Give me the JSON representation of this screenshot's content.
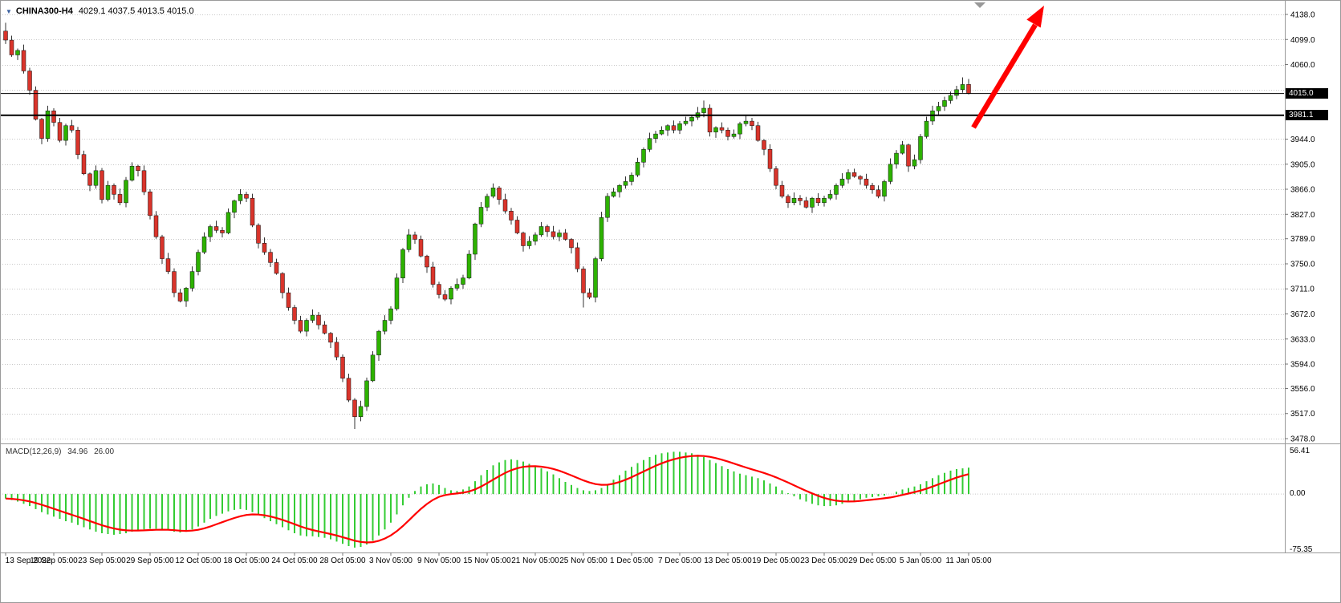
{
  "header": {
    "title": "CHINA300-H4",
    "ohlc": "4029.1 4037.5 4013.5 4015.0",
    "symbol_marker": "▼"
  },
  "price_axis": {
    "labels": [
      "4138.0",
      "4099.0",
      "4060.0",
      "3944.0",
      "3905.0",
      "3866.0",
      "3827.0",
      "3789.0",
      "3750.0",
      "3711.0",
      "3672.0",
      "3633.0",
      "3594.0",
      "3556.0",
      "3517.0",
      "3478.0"
    ],
    "current_price_badge": "4015.0",
    "line_price_badge": "3981.1"
  },
  "current_price_line": {
    "value": 4015.0,
    "color": "#000000"
  },
  "hline": {
    "value": 3981.1,
    "color": "#000000"
  },
  "time_axis": {
    "labels": [
      "13 Sep 2022",
      "19 Sep 05:00",
      "23 Sep 05:00",
      "29 Sep 05:00",
      "12 Oct 05:00",
      "18 Oct 05:00",
      "24 Oct 05:00",
      "28 Oct 05:00",
      "3 Nov 05:00",
      "9 Nov 05:00",
      "15 Nov 05:00",
      "21 Nov 05:00",
      "25 Nov 05:00",
      "1 Dec 05:00",
      "7 Dec 05:00",
      "13 Dec 05:00",
      "19 Dec 05:00",
      "23 Dec 05:00",
      "29 Dec 05:00",
      "5 Jan 05:00",
      "11 Jan 05:00"
    ]
  },
  "macd_panel": {
    "label": "MACD(12,26,9)",
    "value_main": "34.96",
    "value_signal": "26.00",
    "scale": {
      "max": "56.41",
      "zero": "0.00",
      "min": "-75.35"
    }
  },
  "colors": {
    "bull_candle": "#2DB200",
    "bear_candle": "#D9342B",
    "candle_border": "#111111",
    "wick": "#333333",
    "grid": "#c8c8c8",
    "separator": "#9a9a9a",
    "macd_histogram": "#33CC33",
    "macd_signal": "#FF0000",
    "annotation": "#FF0000",
    "badge_bg": "#000000",
    "badge_text": "#ffffff"
  },
  "chart_data": {
    "type": "candlestick",
    "title": "CHINA300-H4",
    "symbol": "CHINA300",
    "timeframe": "H4",
    "ylim": [
      3478,
      4138
    ],
    "gridlines": [
      4138,
      4099,
      4060,
      4021,
      3982,
      3944,
      3905,
      3866,
      3827,
      3789,
      3750,
      3711,
      3672,
      3633,
      3594,
      3556,
      3517,
      3478
    ],
    "candles": [
      [
        4112,
        4125,
        4092,
        4098
      ],
      [
        4098,
        4105,
        4072,
        4075
      ],
      [
        4075,
        4085,
        4067,
        4082
      ],
      [
        4082,
        4091,
        4046,
        4050
      ],
      [
        4050,
        4055,
        4013,
        4020
      ],
      [
        4020,
        4026,
        3973,
        3975
      ],
      [
        3975,
        3977,
        3936,
        3945
      ],
      [
        3945,
        3996,
        3940,
        3988
      ],
      [
        3988,
        3992,
        3964,
        3970
      ],
      [
        3970,
        3977,
        3939,
        3942
      ],
      [
        3942,
        3968,
        3934,
        3965
      ],
      [
        3965,
        3974,
        3954,
        3958
      ],
      [
        3958,
        3963,
        3913,
        3920
      ],
      [
        3920,
        3926,
        3888,
        3890
      ],
      [
        3890,
        3892,
        3863,
        3872
      ],
      [
        3872,
        3903,
        3867,
        3895
      ],
      [
        3895,
        3899,
        3844,
        3850
      ],
      [
        3850,
        3879,
        3847,
        3872
      ],
      [
        3872,
        3875,
        3850,
        3858
      ],
      [
        3858,
        3867,
        3841,
        3845
      ],
      [
        3845,
        3885,
        3838,
        3880
      ],
      [
        3880,
        3908,
        3878,
        3902
      ],
      [
        3902,
        3904,
        3886,
        3895
      ],
      [
        3895,
        3903,
        3857,
        3862
      ],
      [
        3862,
        3866,
        3819,
        3825
      ],
      [
        3825,
        3832,
        3789,
        3792
      ],
      [
        3792,
        3795,
        3750,
        3758
      ],
      [
        3758,
        3767,
        3734,
        3738
      ],
      [
        3738,
        3743,
        3698,
        3705
      ],
      [
        3705,
        3711,
        3690,
        3692
      ],
      [
        3692,
        3714,
        3683,
        3712
      ],
      [
        3712,
        3746,
        3707,
        3738
      ],
      [
        3738,
        3772,
        3732,
        3768
      ],
      [
        3768,
        3799,
        3765,
        3792
      ],
      [
        3792,
        3811,
        3784,
        3808
      ],
      [
        3808,
        3817,
        3798,
        3802
      ],
      [
        3802,
        3807,
        3791,
        3798
      ],
      [
        3798,
        3836,
        3796,
        3830
      ],
      [
        3830,
        3850,
        3821,
        3848
      ],
      [
        3848,
        3866,
        3843,
        3858
      ],
      [
        3858,
        3862,
        3846,
        3852
      ],
      [
        3852,
        3859,
        3807,
        3810
      ],
      [
        3810,
        3813,
        3774,
        3782
      ],
      [
        3782,
        3791,
        3764,
        3768
      ],
      [
        3768,
        3773,
        3745,
        3752
      ],
      [
        3752,
        3758,
        3733,
        3735
      ],
      [
        3735,
        3737,
        3696,
        3705
      ],
      [
        3705,
        3713,
        3677,
        3682
      ],
      [
        3682,
        3686,
        3656,
        3662
      ],
      [
        3662,
        3669,
        3642,
        3645
      ],
      [
        3645,
        3665,
        3637,
        3662
      ],
      [
        3662,
        3679,
        3658,
        3670
      ],
      [
        3670,
        3675,
        3648,
        3655
      ],
      [
        3655,
        3661,
        3640,
        3642
      ],
      [
        3642,
        3644,
        3619,
        3628
      ],
      [
        3628,
        3636,
        3600,
        3605
      ],
      [
        3605,
        3609,
        3566,
        3572
      ],
      [
        3572,
        3579,
        3535,
        3538
      ],
      [
        3538,
        3541,
        3493,
        3512
      ],
      [
        3512,
        3537,
        3505,
        3528
      ],
      [
        3528,
        3573,
        3521,
        3568
      ],
      [
        3568,
        3614,
        3566,
        3608
      ],
      [
        3608,
        3647,
        3599,
        3645
      ],
      [
        3645,
        3670,
        3640,
        3662
      ],
      [
        3662,
        3684,
        3656,
        3680
      ],
      [
        3680,
        3735,
        3677,
        3728
      ],
      [
        3728,
        3775,
        3720,
        3772
      ],
      [
        3772,
        3804,
        3768,
        3795
      ],
      [
        3795,
        3800,
        3781,
        3788
      ],
      [
        3788,
        3794,
        3760,
        3762
      ],
      [
        3762,
        3764,
        3736,
        3745
      ],
      [
        3745,
        3753,
        3713,
        3718
      ],
      [
        3718,
        3722,
        3696,
        3702
      ],
      [
        3702,
        3709,
        3692,
        3695
      ],
      [
        3695,
        3715,
        3687,
        3712
      ],
      [
        3712,
        3727,
        3708,
        3718
      ],
      [
        3718,
        3733,
        3711,
        3728
      ],
      [
        3728,
        3771,
        3726,
        3765
      ],
      [
        3765,
        3814,
        3756,
        3812
      ],
      [
        3812,
        3846,
        3807,
        3838
      ],
      [
        3838,
        3859,
        3832,
        3855
      ],
      [
        3855,
        3875,
        3852,
        3868
      ],
      [
        3868,
        3871,
        3842,
        3850
      ],
      [
        3850,
        3859,
        3828,
        3832
      ],
      [
        3832,
        3837,
        3811,
        3818
      ],
      [
        3818,
        3824,
        3796,
        3798
      ],
      [
        3798,
        3800,
        3769,
        3778
      ],
      [
        3778,
        3793,
        3773,
        3785
      ],
      [
        3785,
        3799,
        3779,
        3795
      ],
      [
        3795,
        3815,
        3792,
        3808
      ],
      [
        3808,
        3811,
        3792,
        3800
      ],
      [
        3800,
        3809,
        3788,
        3792
      ],
      [
        3792,
        3803,
        3785,
        3798
      ],
      [
        3798,
        3804,
        3786,
        3788
      ],
      [
        3788,
        3790,
        3766,
        3775
      ],
      [
        3775,
        3783,
        3737,
        3742
      ],
      [
        3742,
        3746,
        3682,
        3705
      ],
      [
        3705,
        3712,
        3695,
        3698
      ],
      [
        3698,
        3761,
        3690,
        3758
      ],
      [
        3758,
        3831,
        3754,
        3822
      ],
      [
        3822,
        3860,
        3815,
        3855
      ],
      [
        3855,
        3868,
        3853,
        3862
      ],
      [
        3862,
        3874,
        3853,
        3872
      ],
      [
        3872,
        3886,
        3867,
        3878
      ],
      [
        3878,
        3892,
        3872,
        3888
      ],
      [
        3888,
        3915,
        3885,
        3908
      ],
      [
        3908,
        3931,
        3900,
        3928
      ],
      [
        3928,
        3954,
        3924,
        3945
      ],
      [
        3945,
        3957,
        3938,
        3952
      ],
      [
        3952,
        3964,
        3950,
        3958
      ],
      [
        3958,
        3967,
        3949,
        3965
      ],
      [
        3965,
        3973,
        3953,
        3958
      ],
      [
        3958,
        3972,
        3952,
        3968
      ],
      [
        3968,
        3979,
        3965,
        3972
      ],
      [
        3972,
        3981,
        3964,
        3978
      ],
      [
        3978,
        3994,
        3974,
        3985
      ],
      [
        3985,
        4004,
        3978,
        3992
      ],
      [
        3992,
        3998,
        3948,
        3955
      ],
      [
        3955,
        3964,
        3946,
        3962
      ],
      [
        3962,
        3970,
        3953,
        3958
      ],
      [
        3958,
        3962,
        3942,
        3948
      ],
      [
        3948,
        3959,
        3945,
        3952
      ],
      [
        3952,
        3971,
        3944,
        3968
      ],
      [
        3968,
        3981,
        3964,
        3972
      ],
      [
        3972,
        3977,
        3958,
        3965
      ],
      [
        3965,
        3971,
        3940,
        3942
      ],
      [
        3942,
        3944,
        3919,
        3928
      ],
      [
        3928,
        3936,
        3893,
        3898
      ],
      [
        3898,
        3902,
        3866,
        3872
      ],
      [
        3872,
        3879,
        3852,
        3855
      ],
      [
        3855,
        3858,
        3837,
        3845
      ],
      [
        3845,
        3861,
        3841,
        3852
      ],
      [
        3852,
        3857,
        3841,
        3848
      ],
      [
        3848,
        3854,
        3836,
        3838
      ],
      [
        3838,
        3854,
        3829,
        3852
      ],
      [
        3852,
        3860,
        3840,
        3845
      ],
      [
        3845,
        3856,
        3839,
        3852
      ],
      [
        3852,
        3865,
        3849,
        3858
      ],
      [
        3858,
        3875,
        3850,
        3872
      ],
      [
        3872,
        3891,
        3868,
        3882
      ],
      [
        3882,
        3897,
        3875,
        3892
      ],
      [
        3892,
        3898,
        3884,
        3886
      ],
      [
        3886,
        3888,
        3873,
        3882
      ],
      [
        3882,
        3890,
        3867,
        3872
      ],
      [
        3872,
        3876,
        3859,
        3865
      ],
      [
        3865,
        3872,
        3852,
        3855
      ],
      [
        3855,
        3881,
        3847,
        3878
      ],
      [
        3878,
        3914,
        3874,
        3905
      ],
      [
        3905,
        3927,
        3898,
        3922
      ],
      [
        3922,
        3941,
        3920,
        3935
      ],
      [
        3935,
        3937,
        3893,
        3902
      ],
      [
        3902,
        3920,
        3897,
        3912
      ],
      [
        3912,
        3952,
        3906,
        3948
      ],
      [
        3948,
        3979,
        3945,
        3972
      ],
      [
        3972,
        3996,
        3966,
        3988
      ],
      [
        3988,
        4002,
        3980,
        3995
      ],
      [
        3995,
        4010,
        3988,
        4004
      ],
      [
        4004,
        4018,
        3999,
        4012
      ],
      [
        4012,
        4027,
        4006,
        4021
      ],
      [
        4021,
        4040,
        4016,
        4029
      ],
      [
        4029.1,
        4037.5,
        4013.5,
        4015.0
      ]
    ],
    "macd": {
      "params": [
        12,
        26,
        9
      ],
      "ylim": [
        -75.35,
        56.41
      ],
      "last_main": 34.96,
      "last_signal": 26.0,
      "histogram": [
        -6,
        -8,
        -10,
        -13,
        -16,
        -20,
        -24,
        -27,
        -30,
        -33,
        -36,
        -38,
        -41,
        -44,
        -47,
        -50,
        -52,
        -53,
        -54,
        -53,
        -52,
        -50,
        -48,
        -47,
        -46,
        -46,
        -47,
        -48,
        -50,
        -51,
        -50,
        -47,
        -43,
        -38,
        -33,
        -29,
        -26,
        -23,
        -21,
        -20,
        -21,
        -24,
        -28,
        -32,
        -36,
        -40,
        -44,
        -48,
        -52,
        -55,
        -56,
        -56,
        -57,
        -58,
        -60,
        -63,
        -66,
        -69,
        -71,
        -70,
        -67,
        -62,
        -55,
        -47,
        -38,
        -27,
        -15,
        -5,
        4,
        10,
        13,
        14,
        12,
        8,
        5,
        4,
        6,
        10,
        17,
        25,
        32,
        38,
        42,
        45,
        46,
        45,
        43,
        40,
        37,
        34,
        30,
        26,
        21,
        16,
        12,
        8,
        5,
        4,
        5,
        8,
        13,
        19,
        25,
        31,
        36,
        41,
        45,
        49,
        52,
        54,
        55,
        56,
        56,
        55,
        54,
        52,
        49,
        45,
        41,
        37,
        33,
        30,
        27,
        25,
        23,
        21,
        18,
        14,
        10,
        5,
        1,
        -3,
        -7,
        -10,
        -13,
        -15,
        -16,
        -16,
        -15,
        -13,
        -11,
        -9,
        -7,
        -5,
        -4,
        -3,
        -2,
        0,
        3,
        6,
        8,
        10,
        13,
        17,
        21,
        25,
        28,
        31,
        33,
        34,
        34.96
      ]
    }
  }
}
